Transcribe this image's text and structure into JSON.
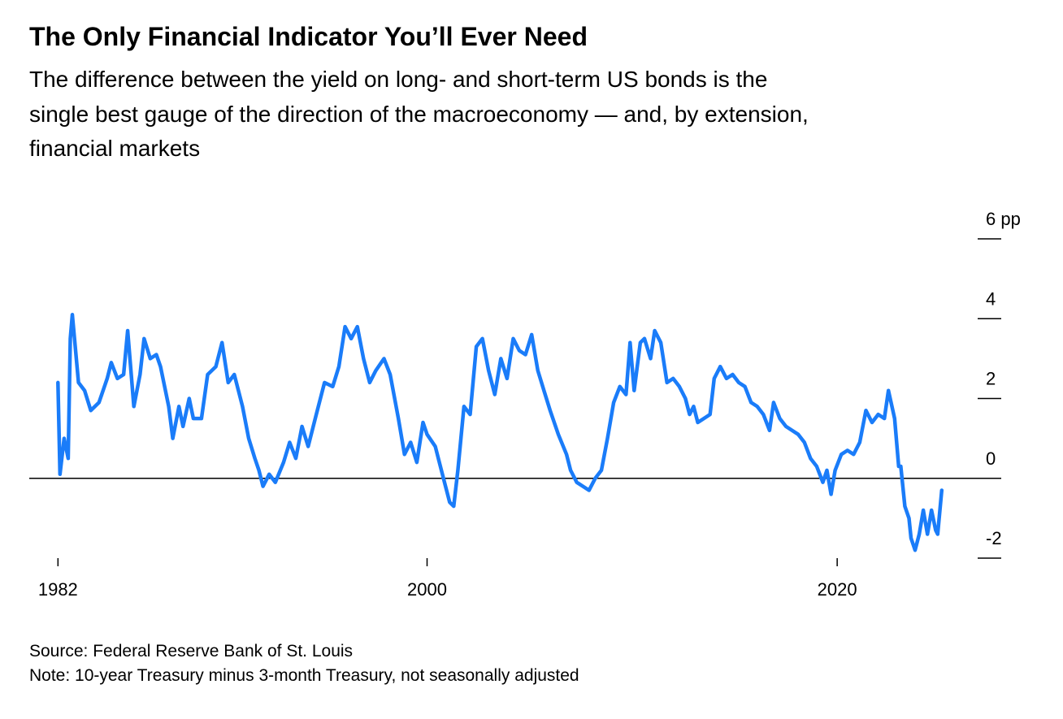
{
  "chart_data": {
    "type": "line",
    "title": "The Only Financial Indicator You’ll Ever Need",
    "subtitle": [
      "The difference between the yield on long- and short-term US bonds is the",
      "single best gauge of the direction of the macroeconomy — and, by extension,",
      "financial markets"
    ],
    "source": "Source: Federal Reserve Bank of St. Louis",
    "note": "Note: 10-year Treasury minus 3-month Treasury, not seasonally adjusted",
    "xlim": [
      1980.6,
      2028
    ],
    "xticks": [
      1982,
      2000,
      2020
    ],
    "ylim": [
      -2,
      6
    ],
    "yticks": [
      {
        "value": 6,
        "label": "6 pp"
      },
      4,
      2,
      0,
      -2
    ],
    "series": [
      {
        "color": "#1a7cf9",
        "x": [
          1982.0,
          1982.1,
          1982.3,
          1982.5,
          1982.6,
          1982.7,
          1983.0,
          1983.3,
          1983.6,
          1984.0,
          1984.4,
          1984.6,
          1984.9,
          1985.2,
          1985.4,
          1985.7,
          1986.0,
          1986.2,
          1986.5,
          1986.8,
          1987.0,
          1987.4,
          1987.6,
          1987.9,
          1988.1,
          1988.4,
          1988.6,
          1989.0,
          1989.3,
          1989.7,
          1990.0,
          1990.3,
          1990.6,
          1991.0,
          1991.3,
          1991.6,
          1991.8,
          1992.0,
          1992.3,
          1992.6,
          1993.0,
          1993.3,
          1993.6,
          1993.9,
          1994.2,
          1994.6,
          1995.0,
          1995.4,
          1995.7,
          1996.0,
          1996.3,
          1996.6,
          1996.9,
          1997.2,
          1997.5,
          1997.9,
          1998.2,
          1998.6,
          1998.9,
          1999.2,
          1999.5,
          1999.8,
          2000.0,
          2000.4,
          2000.6,
          2000.9,
          2001.1,
          2001.3,
          2001.5,
          2001.8,
          2002.1,
          2002.4,
          2002.7,
          2003.0,
          2003.3,
          2003.6,
          2003.9,
          2004.2,
          2004.5,
          2004.8,
          2005.1,
          2005.4,
          2005.7,
          2006.0,
          2006.4,
          2006.8,
          2007.0,
          2007.3,
          2007.6,
          2007.9,
          2008.2,
          2008.5,
          2008.8,
          2009.1,
          2009.4,
          2009.7,
          2009.9,
          2010.1,
          2010.4,
          2010.6,
          2010.9,
          2011.1,
          2011.4,
          2011.7,
          2012.0,
          2012.3,
          2012.6,
          2012.8,
          2013.0,
          2013.2,
          2013.5,
          2013.8,
          2014.0,
          2014.3,
          2014.6,
          2014.9,
          2015.2,
          2015.5,
          2015.8,
          2016.1,
          2016.4,
          2016.7,
          2016.9,
          2017.2,
          2017.5,
          2017.8,
          2018.1,
          2018.4,
          2018.7,
          2019.0,
          2019.3,
          2019.5,
          2019.7,
          2019.9,
          2020.2,
          2020.5,
          2020.8,
          2021.1,
          2021.4,
          2021.7,
          2022.0,
          2022.3,
          2022.5,
          2022.8,
          2023.0,
          2023.1,
          2023.3,
          2023.5,
          2023.6,
          2023.8,
          2024.0,
          2024.2,
          2024.4,
          2024.6,
          2024.8,
          2024.9,
          2025.1
        ],
        "values": [
          2.4,
          0.1,
          1.0,
          0.5,
          3.5,
          4.1,
          2.4,
          2.2,
          1.7,
          1.9,
          2.5,
          2.9,
          2.5,
          2.6,
          3.7,
          1.8,
          2.6,
          3.5,
          3.0,
          3.1,
          2.8,
          1.8,
          1.0,
          1.8,
          1.3,
          2.0,
          1.5,
          1.5,
          2.6,
          2.8,
          3.4,
          2.4,
          2.6,
          1.8,
          1.0,
          0.5,
          0.2,
          -0.2,
          0.1,
          -0.1,
          0.4,
          0.9,
          0.5,
          1.3,
          0.8,
          1.6,
          2.4,
          2.3,
          2.8,
          3.8,
          3.5,
          3.8,
          3.0,
          2.4,
          2.7,
          3.0,
          2.6,
          1.5,
          0.6,
          0.9,
          0.4,
          1.4,
          1.1,
          0.8,
          0.4,
          -0.2,
          -0.6,
          -0.7,
          0.2,
          1.8,
          1.6,
          3.3,
          3.5,
          2.7,
          2.1,
          3.0,
          2.5,
          3.5,
          3.2,
          3.1,
          3.6,
          2.7,
          2.2,
          1.7,
          1.1,
          0.6,
          0.2,
          -0.1,
          -0.2,
          -0.3,
          0.0,
          0.2,
          1.0,
          1.9,
          2.3,
          2.1,
          3.4,
          2.2,
          3.4,
          3.5,
          3.0,
          3.7,
          3.4,
          2.4,
          2.5,
          2.3,
          2.0,
          1.6,
          1.8,
          1.4,
          1.5,
          1.6,
          2.5,
          2.8,
          2.5,
          2.6,
          2.4,
          2.3,
          1.9,
          1.8,
          1.6,
          1.2,
          1.9,
          1.5,
          1.3,
          1.2,
          1.1,
          0.9,
          0.5,
          0.3,
          -0.1,
          0.2,
          -0.4,
          0.2,
          0.6,
          0.7,
          0.6,
          0.9,
          1.7,
          1.4,
          1.6,
          1.5,
          2.2,
          1.5,
          0.3,
          0.3,
          -0.7,
          -1.0,
          -1.5,
          -1.8,
          -1.4,
          -0.8,
          -1.4,
          -0.8,
          -1.3,
          -1.4,
          -0.3
        ]
      }
    ]
  }
}
